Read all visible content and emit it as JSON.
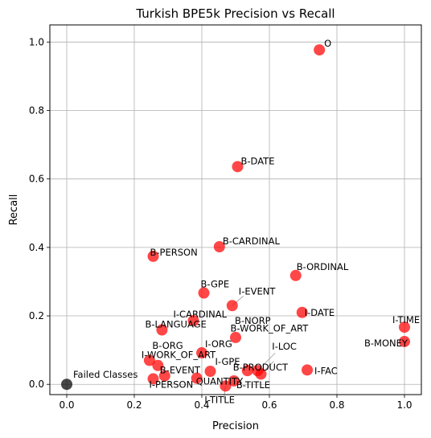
{
  "chart_data": {
    "type": "scatter",
    "title": "Turkish BPE5k Precision vs Recall",
    "xlabel": "Precision",
    "ylabel": "Recall",
    "xlim": [
      -0.05,
      1.05
    ],
    "ylim": [
      -0.03,
      1.05
    ],
    "xticks": [
      "0.0",
      "0.2",
      "0.4",
      "0.6",
      "0.8",
      "1.0"
    ],
    "yticks": [
      "0.0",
      "0.2",
      "0.4",
      "0.6",
      "0.8",
      "1.0"
    ],
    "grid": true,
    "colors": {
      "class_point": "#ff0000",
      "failed_point": "#000000"
    },
    "points": [
      {
        "label": "O",
        "x": 0.748,
        "y": 0.977
      },
      {
        "label": "B-DATE",
        "x": 0.506,
        "y": 0.636
      },
      {
        "label": "B-CARDINAL",
        "x": 0.452,
        "y": 0.402
      },
      {
        "label": "B-PERSON",
        "x": 0.256,
        "y": 0.374
      },
      {
        "label": "B-ORDINAL",
        "x": 0.678,
        "y": 0.318
      },
      {
        "label": "B-GPE",
        "x": 0.406,
        "y": 0.267
      },
      {
        "label": "I-EVENT",
        "x": 0.49,
        "y": 0.23
      },
      {
        "label": "I-CARDINAL",
        "x": 0.375,
        "y": 0.186
      },
      {
        "label": "I-DATE",
        "x": 0.697,
        "y": 0.21
      },
      {
        "label": "B-LANGUAGE",
        "x": 0.282,
        "y": 0.159
      },
      {
        "label": "I-TIME",
        "x": 1.0,
        "y": 0.167
      },
      {
        "label": "B-NORP",
        "x": 0.5,
        "y": 0.137
      },
      {
        "label": "I-ORG",
        "x": 0.4,
        "y": 0.092
      },
      {
        "label": "B-WORK_OF_ART",
        "x": 0.575,
        "y": 0.03
      },
      {
        "label": "B-MONEY",
        "x": 1.0,
        "y": 0.125
      },
      {
        "label": "B-ORG",
        "x": 0.27,
        "y": 0.055
      },
      {
        "label": "I-LOC",
        "x": 0.565,
        "y": 0.04
      },
      {
        "label": "I-WORK_OF_ART",
        "x": 0.245,
        "y": 0.07
      },
      {
        "label": "B-EVENT",
        "x": 0.29,
        "y": 0.025
      },
      {
        "label": "I-GPE",
        "x": 0.425,
        "y": 0.038
      },
      {
        "label": "B-PRODUCT",
        "x": 0.535,
        "y": 0.04
      },
      {
        "label": "I-FAC",
        "x": 0.712,
        "y": 0.042
      },
      {
        "label": "I-PERSON",
        "x": 0.256,
        "y": 0.016
      },
      {
        "label": "QUANTITY",
        "x": 0.385,
        "y": 0.018
      },
      {
        "label": "B-TITLE",
        "x": 0.495,
        "y": 0.01
      },
      {
        "label": "I-TITLE",
        "x": 0.47,
        "y": -0.005
      }
    ],
    "failed": {
      "label": "Failed Classes",
      "x": 0.0,
      "y": 0.0
    }
  }
}
